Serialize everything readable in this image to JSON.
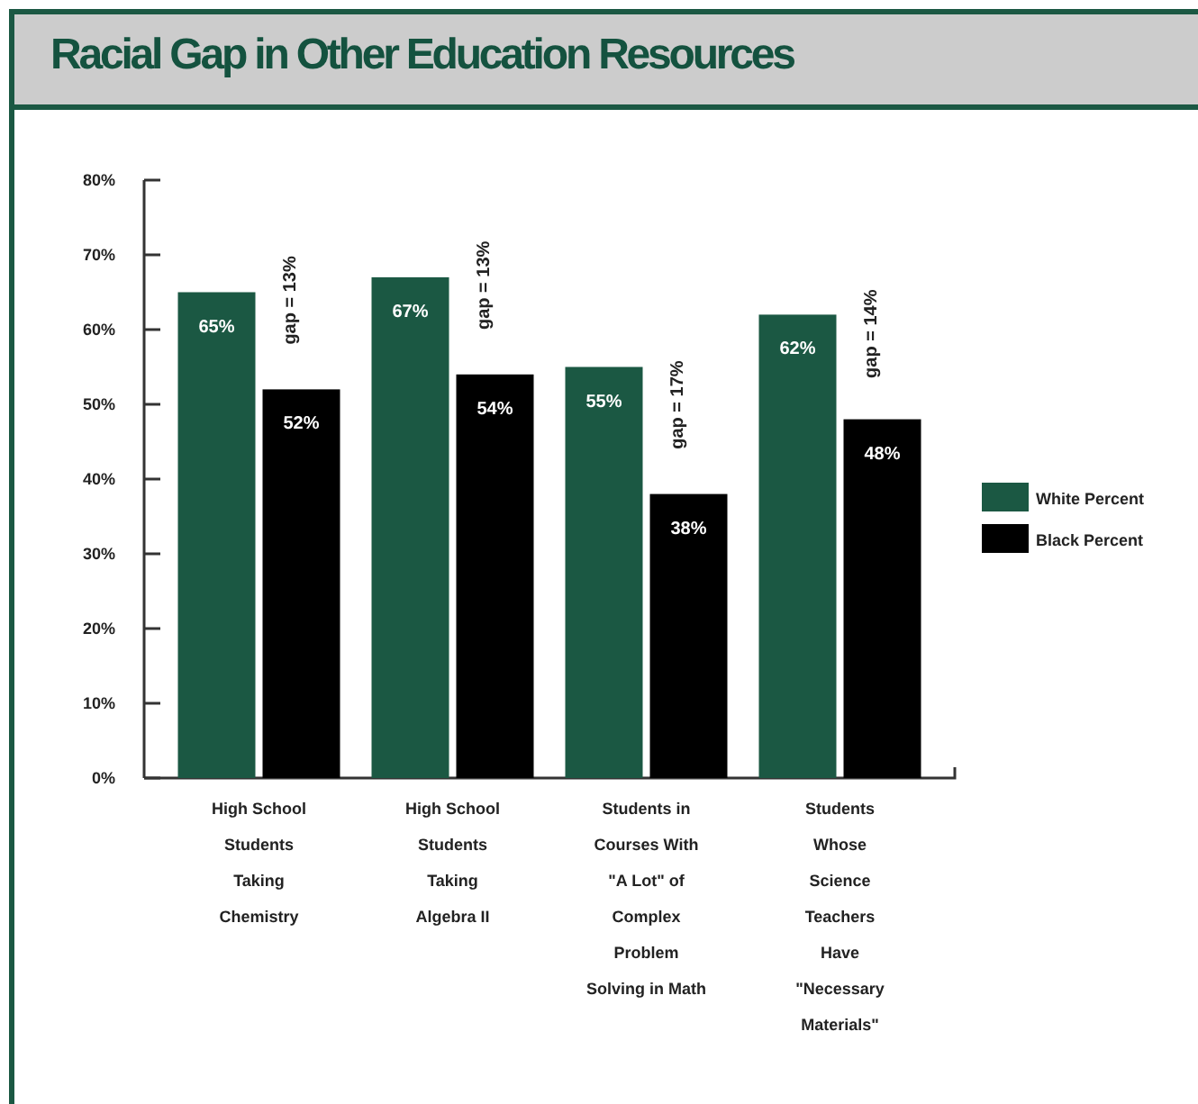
{
  "chart_data": {
    "type": "bar",
    "title": "Racial Gap in Other Education Resources",
    "categories": [
      "High School\nStudents\nTaking\nChemistry",
      "High School\nStudents\nTaking\nAlgebra II",
      "Students in\nCourses With\n\"A Lot\" of\nComplex\nProblem\nSolving in Math",
      "Students\nWhose\nScience\nTeachers\nHave\n\"Necessary\nMaterials\""
    ],
    "series": [
      {
        "name": "White Percent",
        "color": "#1b5843",
        "values": [
          65,
          67,
          55,
          62
        ],
        "value_labels": [
          "65%",
          "67%",
          "55%",
          "62%"
        ]
      },
      {
        "name": "Black Percent",
        "color": "#000000",
        "values": [
          52,
          54,
          38,
          48
        ],
        "value_labels": [
          "52%",
          "54%",
          "38%",
          "48%"
        ]
      }
    ],
    "ylim": [
      0,
      80
    ],
    "yticks": [
      {
        "value": 0,
        "label": "0%"
      },
      {
        "value": 10,
        "label": "10%"
      },
      {
        "value": 20,
        "label": "20%"
      },
      {
        "value": 30,
        "label": "30%"
      },
      {
        "value": 40,
        "label": "40%"
      },
      {
        "value": 50,
        "label": "50%"
      },
      {
        "value": 60,
        "label": "60%"
      },
      {
        "value": 70,
        "label": "70%"
      },
      {
        "value": 80,
        "label": "80%"
      }
    ],
    "annotations": [
      {
        "text": "gap = 13%",
        "x": "High School\nStudents\nTaking\nChemistry",
        "y": 58
      },
      {
        "text": "gap = 13%",
        "x": "High School\nStudents\nTaking\nAlgebra II",
        "y": 60
      },
      {
        "text": "gap = 17%",
        "x": "Students in\nCourses With\n\"A Lot\" of\nComplex\nProblem\nSolving in Math",
        "y": 44
      },
      {
        "text": "gap = 14%",
        "x": "Students\nWhose\nScience\nTeachers\nHave\n\"Necessary\nMaterials\"",
        "y": 53.5
      }
    ],
    "legend": "right",
    "grid": false
  }
}
